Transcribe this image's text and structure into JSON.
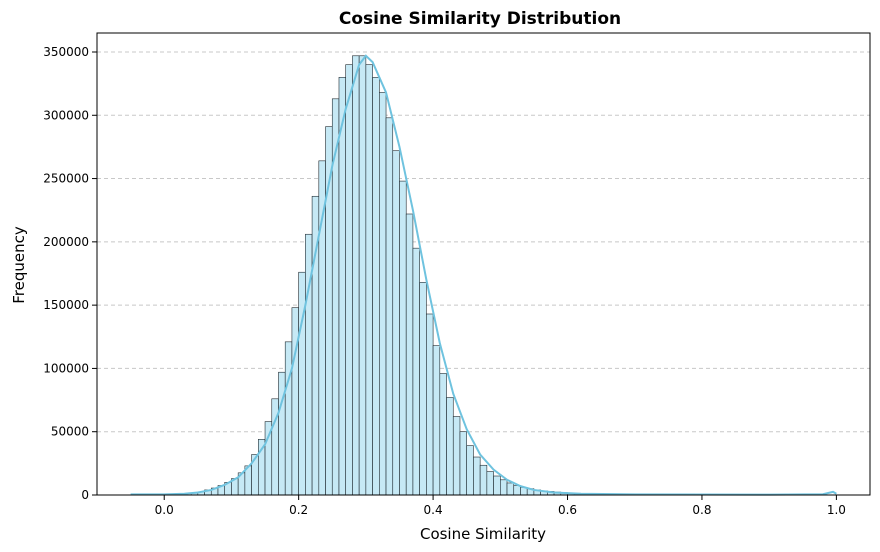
{
  "chart_data": {
    "type": "bar",
    "title": "Cosine Similarity Distribution",
    "xlabel": "Cosine Similarity",
    "ylabel": "Frequency",
    "xlim": [
      -0.1,
      1.05
    ],
    "ylim": [
      0,
      365000
    ],
    "xticks": [
      0.0,
      0.2,
      0.4,
      0.6,
      0.8,
      1.0
    ],
    "xtick_labels": [
      "0.0",
      "0.2",
      "0.4",
      "0.6",
      "0.8",
      "1.0"
    ],
    "yticks": [
      0,
      50000,
      100000,
      150000,
      200000,
      250000,
      300000,
      350000
    ],
    "ytick_labels": [
      "0",
      "50000",
      "100000",
      "150000",
      "200000",
      "250000",
      "300000",
      "350000"
    ],
    "grid": "y-dashed",
    "bar_fill": "#c6e9f5",
    "bar_edge": "#1f2a30",
    "kde_color": "#6fc3df",
    "bin_width": 0.01,
    "bin_centers": [
      0.045,
      0.055,
      0.065,
      0.075,
      0.085,
      0.095,
      0.105,
      0.115,
      0.125,
      0.135,
      0.145,
      0.155,
      0.165,
      0.175,
      0.185,
      0.195,
      0.205,
      0.215,
      0.225,
      0.235,
      0.245,
      0.255,
      0.265,
      0.275,
      0.285,
      0.295,
      0.305,
      0.315,
      0.325,
      0.335,
      0.345,
      0.355,
      0.365,
      0.375,
      0.385,
      0.395,
      0.405,
      0.415,
      0.425,
      0.435,
      0.445,
      0.455,
      0.465,
      0.475,
      0.485,
      0.495,
      0.505,
      0.515,
      0.525,
      0.535,
      0.545,
      0.555,
      0.565,
      0.575,
      0.585,
      0.595,
      0.605,
      0.615,
      0.625,
      0.635,
      0.645,
      0.655
    ],
    "values": [
      1500,
      2500,
      4000,
      5500,
      7500,
      10000,
      13000,
      17500,
      23000,
      32000,
      44000,
      58000,
      76000,
      97000,
      121000,
      148000,
      176000,
      206000,
      236000,
      264000,
      291000,
      313000,
      330000,
      340000,
      347000,
      347000,
      340000,
      330000,
      318000,
      298000,
      272000,
      248000,
      222000,
      195000,
      168000,
      143000,
      118000,
      96000,
      77000,
      62000,
      50000,
      39000,
      30000,
      23500,
      18500,
      15000,
      12000,
      9500,
      7500,
      6000,
      5000,
      4000,
      3300,
      2800,
      2300,
      1900,
      1600,
      1300,
      1100,
      900,
      700,
      500
    ],
    "kde_x": [
      -0.05,
      0.0,
      0.03,
      0.05,
      0.07,
      0.09,
      0.11,
      0.13,
      0.15,
      0.17,
      0.19,
      0.21,
      0.23,
      0.25,
      0.27,
      0.29,
      0.3,
      0.31,
      0.33,
      0.35,
      0.37,
      0.39,
      0.41,
      0.43,
      0.45,
      0.47,
      0.49,
      0.51,
      0.53,
      0.55,
      0.58,
      0.62,
      0.7,
      0.8,
      0.9,
      0.98,
      0.995,
      1.0
    ],
    "kde_y": [
      500,
      500,
      1000,
      2000,
      4000,
      8000,
      14000,
      25000,
      40000,
      65000,
      100000,
      150000,
      205000,
      260000,
      305000,
      340000,
      347000,
      342000,
      318000,
      275000,
      225000,
      170000,
      120000,
      80000,
      52000,
      32000,
      20000,
      12000,
      7000,
      4000,
      2000,
      1000,
      500,
      400,
      300,
      600,
      2500,
      1000
    ]
  }
}
